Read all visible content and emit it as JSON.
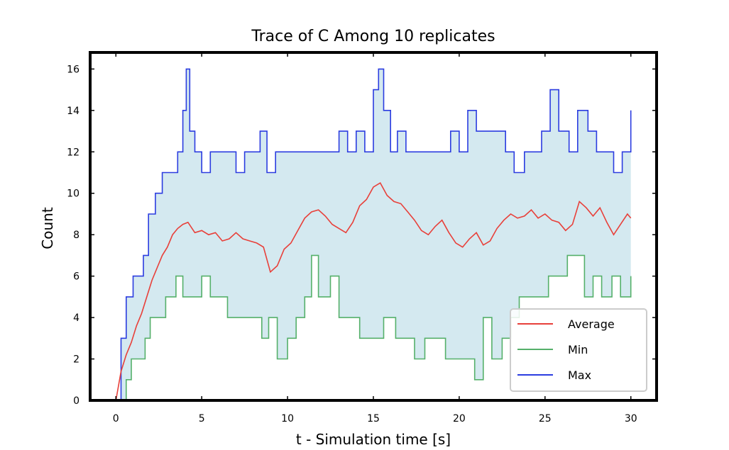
{
  "chart_data": {
    "type": "line",
    "title": "Trace of C Among 10 replicates",
    "xlabel": "t - Simulation time [s]",
    "ylabel": "Count",
    "xlim": [
      -1.5,
      31.5
    ],
    "ylim": [
      0,
      16.8
    ],
    "xticks": [
      0,
      5,
      10,
      15,
      20,
      25,
      30
    ],
    "yticks": [
      0,
      2,
      4,
      6,
      8,
      10,
      12,
      14,
      16
    ],
    "grid": false,
    "legend_position": "lower-right",
    "fill_between": {
      "lower": "Min",
      "upper": "Max",
      "color": "#d4e9f0"
    },
    "series": [
      {
        "name": "Average",
        "color": "#e8403a",
        "x": [
          0,
          0.3,
          0.6,
          0.9,
          1.2,
          1.5,
          1.8,
          2.1,
          2.4,
          2.7,
          3.0,
          3.3,
          3.6,
          3.9,
          4.2,
          4.6,
          5.0,
          5.4,
          5.8,
          6.2,
          6.6,
          7.0,
          7.4,
          7.8,
          8.2,
          8.6,
          9.0,
          9.4,
          9.8,
          10.2,
          10.6,
          11.0,
          11.4,
          11.8,
          12.2,
          12.6,
          13.0,
          13.4,
          13.8,
          14.2,
          14.6,
          15.0,
          15.4,
          15.8,
          16.2,
          16.6,
          17.0,
          17.4,
          17.8,
          18.2,
          18.6,
          19.0,
          19.4,
          19.8,
          20.2,
          20.6,
          21.0,
          21.4,
          21.8,
          22.2,
          22.6,
          23.0,
          23.4,
          23.8,
          24.2,
          24.6,
          25.0,
          25.4,
          25.8,
          26.2,
          26.6,
          27.0,
          27.4,
          27.8,
          28.2,
          28.6,
          29.0,
          29.4,
          29.8,
          30.0
        ],
        "y": [
          0,
          1.4,
          2.2,
          2.8,
          3.6,
          4.2,
          5.0,
          5.8,
          6.4,
          7.0,
          7.4,
          8.0,
          8.3,
          8.5,
          8.6,
          8.1,
          8.2,
          8.0,
          8.1,
          7.7,
          7.8,
          8.1,
          7.8,
          7.7,
          7.6,
          7.4,
          6.2,
          6.5,
          7.3,
          7.6,
          8.2,
          8.8,
          9.1,
          9.2,
          8.9,
          8.5,
          8.3,
          8.1,
          8.6,
          9.4,
          9.7,
          10.3,
          10.5,
          9.9,
          9.6,
          9.5,
          9.1,
          8.7,
          8.2,
          8.0,
          8.4,
          8.7,
          8.1,
          7.6,
          7.4,
          7.8,
          8.1,
          7.5,
          7.7,
          8.3,
          8.7,
          9.0,
          8.8,
          8.9,
          9.2,
          8.8,
          9.0,
          8.7,
          8.6,
          8.2,
          8.5,
          9.6,
          9.3,
          8.9,
          9.3,
          8.6,
          8.0,
          8.5,
          9.0,
          8.8
        ]
      },
      {
        "name": "Min",
        "color": "#55b06a",
        "x": [
          0,
          0.4,
          0.6,
          0.9,
          1.1,
          1.7,
          2.0,
          2.6,
          2.9,
          3.5,
          3.9,
          5.0,
          5.5,
          6.0,
          6.5,
          7.0,
          7.6,
          8.2,
          8.5,
          8.9,
          9.4,
          10.0,
          10.5,
          11.0,
          11.4,
          11.8,
          12.5,
          13.0,
          13.6,
          14.2,
          15.0,
          15.6,
          16.3,
          16.8,
          17.4,
          18.0,
          18.6,
          19.2,
          19.8,
          20.3,
          20.9,
          21.4,
          21.9,
          22.5,
          23.0,
          23.5,
          24.0,
          24.6,
          25.2,
          25.8,
          26.3,
          26.9,
          27.3,
          27.8,
          28.3,
          28.9,
          29.4,
          30.0
        ],
        "y": [
          0,
          0,
          1,
          2,
          2,
          3,
          4,
          4,
          5,
          6,
          5,
          6,
          5,
          5,
          4,
          4,
          4,
          4,
          3,
          4,
          2,
          3,
          4,
          5,
          7,
          5,
          6,
          4,
          4,
          3,
          3,
          4,
          3,
          3,
          2,
          3,
          3,
          2,
          2,
          2,
          1,
          4,
          2,
          3,
          4,
          5,
          5,
          5,
          6,
          6,
          7,
          7,
          5,
          6,
          5,
          6,
          5,
          6
        ]
      },
      {
        "name": "Max",
        "color": "#2b3ce0",
        "x": [
          0,
          0.3,
          0.6,
          1.0,
          1.3,
          1.6,
          1.9,
          2.3,
          2.7,
          3.0,
          3.6,
          3.9,
          4.1,
          4.3,
          4.6,
          5.0,
          5.5,
          6.0,
          6.5,
          7.0,
          7.5,
          8.0,
          8.4,
          8.8,
          9.3,
          9.8,
          10.2,
          10.8,
          11.3,
          11.9,
          12.4,
          13.0,
          13.5,
          14.0,
          14.5,
          15.0,
          15.3,
          15.6,
          16.0,
          16.4,
          16.9,
          17.4,
          18.0,
          18.5,
          19.0,
          19.5,
          20.0,
          20.5,
          21.0,
          21.6,
          22.1,
          22.7,
          23.2,
          23.8,
          24.3,
          24.8,
          25.3,
          25.8,
          26.4,
          26.9,
          27.5,
          28.0,
          28.5,
          29.0,
          29.5,
          30.0
        ],
        "y": [
          0,
          3,
          5,
          6,
          6,
          7,
          9,
          10,
          11,
          11,
          12,
          14,
          16,
          13,
          12,
          11,
          12,
          12,
          12,
          11,
          12,
          12,
          13,
          11,
          12,
          12,
          12,
          12,
          12,
          12,
          12,
          13,
          12,
          13,
          12,
          15,
          16,
          14,
          12,
          13,
          12,
          12,
          12,
          12,
          12,
          13,
          12,
          14,
          13,
          13,
          13,
          12,
          11,
          12,
          12,
          13,
          15,
          13,
          12,
          14,
          13,
          12,
          12,
          11,
          12,
          14
        ]
      }
    ]
  }
}
